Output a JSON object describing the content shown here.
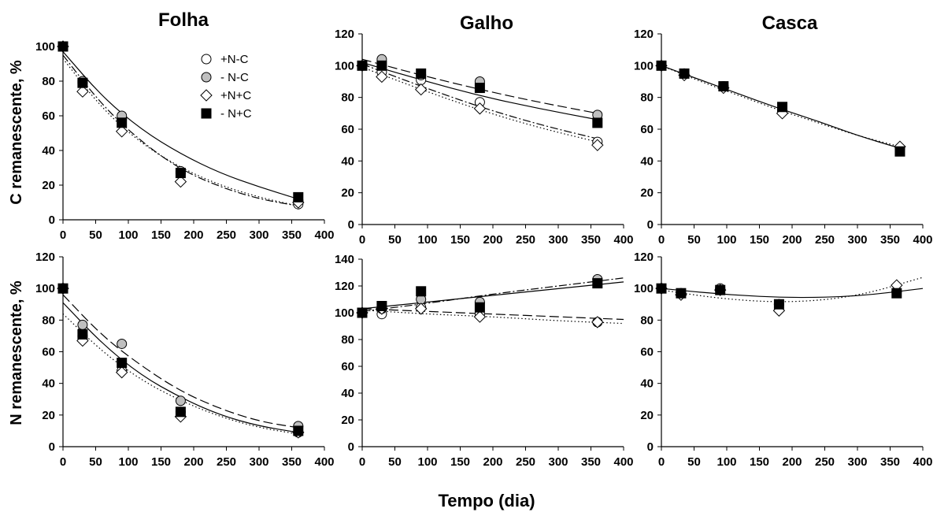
{
  "figure": {
    "x_axis_label": "Tempo (dia)",
    "y_axis_labels": [
      "C remanescente, %",
      "N remanescente, %"
    ],
    "column_titles": [
      "Folha",
      "Galho",
      "Casca"
    ],
    "legend": [
      {
        "label": "+N-C",
        "marker": "circle",
        "fill": "#ffffff"
      },
      {
        "label": "- N-C",
        "marker": "circle",
        "fill": "#bfbfbf"
      },
      {
        "label": "+N+C",
        "marker": "diamond",
        "fill": "#ffffff"
      },
      {
        "label": "- N+C",
        "marker": "square",
        "fill": "#000000"
      }
    ]
  },
  "chart_data": [
    {
      "type": "scatter",
      "title": "Folha",
      "ylabel": "C remanescente, %",
      "xlim": [
        0,
        400
      ],
      "ylim": [
        0,
        100
      ],
      "xticks": [
        0,
        50,
        100,
        150,
        200,
        250,
        300,
        350,
        400
      ],
      "yticks": [
        0,
        20,
        40,
        60,
        80,
        100
      ],
      "series": [
        {
          "name": "+N-C",
          "x": [
            0,
            30,
            90,
            180,
            360
          ],
          "y": [
            100,
            79,
            58,
            27,
            9
          ]
        },
        {
          "name": "- N-C",
          "x": [
            0,
            30,
            90,
            180,
            360
          ],
          "y": [
            100,
            80,
            60,
            28,
            11
          ]
        },
        {
          "name": "+N+C",
          "x": [
            0,
            30,
            90,
            180,
            360
          ],
          "y": [
            100,
            74,
            51,
            22,
            10
          ]
        },
        {
          "name": "- N+C",
          "x": [
            0,
            30,
            90,
            180,
            360
          ],
          "y": [
            100,
            79,
            56,
            27,
            13
          ]
        }
      ],
      "fits": [
        {
          "style": "solid",
          "x": [
            0,
            60,
            120,
            180,
            240,
            300,
            360
          ],
          "y": [
            97,
            71,
            52,
            38,
            27,
            19,
            12
          ]
        },
        {
          "style": "dotted",
          "x": [
            0,
            60,
            120,
            180,
            240,
            300,
            360
          ],
          "y": [
            93,
            64,
            44,
            30,
            20,
            13,
            8
          ]
        },
        {
          "style": "dashdot",
          "x": [
            0,
            60,
            120,
            180,
            240,
            300,
            360
          ],
          "y": [
            95,
            66,
            45,
            29,
            19,
            12,
            8
          ]
        }
      ]
    },
    {
      "type": "scatter",
      "title": "Galho",
      "ylabel": "",
      "xlim": [
        0,
        400
      ],
      "ylim": [
        0,
        120
      ],
      "xticks": [
        0,
        50,
        100,
        150,
        200,
        250,
        300,
        350,
        400
      ],
      "yticks": [
        0,
        20,
        40,
        60,
        80,
        100,
        120
      ],
      "series": [
        {
          "name": "+N-C",
          "x": [
            0,
            30,
            90,
            180,
            360
          ],
          "y": [
            100,
            96,
            91,
            77,
            52
          ]
        },
        {
          "name": "- N-C",
          "x": [
            0,
            30,
            90,
            180,
            360
          ],
          "y": [
            100,
            104,
            94,
            90,
            69
          ]
        },
        {
          "name": "+N+C",
          "x": [
            0,
            30,
            90,
            180,
            360
          ],
          "y": [
            100,
            93,
            85,
            73,
            50
          ]
        },
        {
          "name": "- N+C",
          "x": [
            0,
            30,
            90,
            180,
            360
          ],
          "y": [
            100,
            100,
            95,
            86,
            64
          ]
        }
      ],
      "fits": [
        {
          "style": "dashed",
          "x": [
            0,
            90,
            180,
            270,
            360
          ],
          "y": [
            104,
            94,
            85,
            77,
            70
          ]
        },
        {
          "style": "solid",
          "x": [
            0,
            90,
            180,
            270,
            360
          ],
          "y": [
            102,
            91,
            81,
            73,
            66
          ]
        },
        {
          "style": "dashdot",
          "x": [
            0,
            90,
            180,
            270,
            360
          ],
          "y": [
            101,
            87,
            74,
            63,
            54
          ]
        },
        {
          "style": "dotted",
          "x": [
            0,
            90,
            180,
            270,
            360
          ],
          "y": [
            99,
            85,
            72,
            61,
            52
          ]
        }
      ]
    },
    {
      "type": "scatter",
      "title": "Casca",
      "ylabel": "",
      "xlim": [
        0,
        400
      ],
      "ylim": [
        0,
        120
      ],
      "xticks": [
        0,
        50,
        100,
        150,
        200,
        250,
        300,
        350,
        400
      ],
      "yticks": [
        0,
        20,
        40,
        60,
        80,
        100,
        120
      ],
      "series": [
        {
          "name": "+N-C",
          "x": [
            0,
            35,
            95,
            185,
            365
          ],
          "y": [
            100,
            95,
            87,
            71,
            48
          ]
        },
        {
          "name": "- N-C",
          "x": [
            0,
            35,
            95,
            185,
            365
          ],
          "y": [
            100,
            95,
            87,
            72,
            48
          ]
        },
        {
          "name": "+N+C",
          "x": [
            0,
            35,
            95,
            185,
            365
          ],
          "y": [
            100,
            94,
            86,
            70,
            49
          ]
        },
        {
          "name": "- N+C",
          "x": [
            0,
            35,
            95,
            185,
            365
          ],
          "y": [
            100,
            95,
            87,
            74,
            46
          ]
        }
      ],
      "fits": [
        {
          "style": "solid",
          "x": [
            0,
            60,
            120,
            180,
            240,
            300,
            365
          ],
          "y": [
            100,
            91,
            82,
            73,
            65,
            56,
            48
          ]
        },
        {
          "style": "dotted",
          "x": [
            0,
            60,
            120,
            180,
            240,
            300,
            365
          ],
          "y": [
            100,
            90,
            81,
            72,
            64,
            56,
            49
          ]
        }
      ]
    },
    {
      "type": "scatter",
      "title": "",
      "ylabel": "N remanescente, %",
      "xlim": [
        0,
        400
      ],
      "ylim": [
        0,
        120
      ],
      "xticks": [
        0,
        50,
        100,
        150,
        200,
        250,
        300,
        350,
        400
      ],
      "yticks": [
        0,
        20,
        40,
        60,
        80,
        100,
        120
      ],
      "series": [
        {
          "name": "+N-C",
          "x": [
            0,
            30,
            90,
            180,
            360
          ],
          "y": [
            100,
            70,
            48,
            22,
            9
          ]
        },
        {
          "name": "- N-C",
          "x": [
            0,
            30,
            90,
            180,
            360
          ],
          "y": [
            100,
            77,
            65,
            29,
            13
          ]
        },
        {
          "name": "+N+C",
          "x": [
            0,
            30,
            90,
            180,
            360
          ],
          "y": [
            100,
            67,
            47,
            19,
            9
          ]
        },
        {
          "name": "- N+C",
          "x": [
            0,
            30,
            90,
            180,
            360
          ],
          "y": [
            100,
            71,
            53,
            22,
            10
          ]
        }
      ],
      "fits": [
        {
          "style": "dashed",
          "x": [
            0,
            60,
            120,
            180,
            240,
            300,
            360
          ],
          "y": [
            96,
            70,
            51,
            35,
            24,
            16,
            12
          ]
        },
        {
          "style": "solid",
          "x": [
            0,
            60,
            120,
            180,
            240,
            300,
            360
          ],
          "y": [
            91,
            65,
            45,
            31,
            20,
            13,
            9
          ]
        },
        {
          "style": "dotted",
          "x": [
            0,
            60,
            120,
            180,
            240,
            300,
            360
          ],
          "y": [
            84,
            60,
            42,
            29,
            19,
            12,
            8
          ]
        }
      ]
    },
    {
      "type": "scatter",
      "title": "",
      "ylabel": "",
      "xlim": [
        0,
        400
      ],
      "ylim": [
        0,
        140
      ],
      "xticks": [
        0,
        50,
        100,
        150,
        200,
        250,
        300,
        350,
        400
      ],
      "yticks": [
        0,
        20,
        40,
        60,
        80,
        100,
        120,
        140
      ],
      "series": [
        {
          "name": "+N-C",
          "x": [
            0,
            30,
            90,
            180,
            360
          ],
          "y": [
            100,
            99,
            104,
            99,
            93
          ]
        },
        {
          "name": "- N-C",
          "x": [
            0,
            30,
            90,
            180,
            360
          ],
          "y": [
            100,
            103,
            110,
            108,
            125
          ]
        },
        {
          "name": "+N+C",
          "x": [
            0,
            30,
            90,
            180,
            360
          ],
          "y": [
            100,
            103,
            103,
            97,
            93
          ]
        },
        {
          "name": "- N+C",
          "x": [
            0,
            30,
            90,
            180,
            360
          ],
          "y": [
            100,
            105,
            116,
            104,
            122
          ]
        }
      ],
      "fits": [
        {
          "style": "solid",
          "x": [
            0,
            100,
            200,
            300,
            400
          ],
          "y": [
            103,
            108,
            113,
            118,
            123
          ]
        },
        {
          "style": "dashdot",
          "x": [
            0,
            100,
            200,
            300,
            400
          ],
          "y": [
            101,
            107,
            114,
            120,
            126
          ]
        },
        {
          "style": "dashed",
          "x": [
            0,
            100,
            200,
            300,
            400
          ],
          "y": [
            103,
            101,
            99,
            97,
            95
          ]
        },
        {
          "style": "dotted",
          "x": [
            0,
            100,
            200,
            300,
            400
          ],
          "y": [
            102,
            99,
            97,
            94,
            92
          ]
        }
      ]
    },
    {
      "type": "scatter",
      "title": "",
      "ylabel": "",
      "xlim": [
        0,
        400
      ],
      "ylim": [
        0,
        120
      ],
      "xticks": [
        0,
        50,
        100,
        150,
        200,
        250,
        300,
        350,
        400
      ],
      "yticks": [
        0,
        20,
        40,
        60,
        80,
        100,
        120
      ],
      "series": [
        {
          "name": "+N-C",
          "x": [
            0,
            30,
            90,
            180,
            360
          ],
          "y": [
            100,
            97,
            100,
            90,
            98
          ]
        },
        {
          "name": "- N-C",
          "x": [
            0,
            30,
            90,
            180,
            360
          ],
          "y": [
            100,
            97,
            99,
            90,
            98
          ]
        },
        {
          "name": "+N+C",
          "x": [
            0,
            30,
            90,
            180,
            360
          ],
          "y": [
            100,
            96,
            99,
            86,
            102
          ]
        },
        {
          "name": "- N+C",
          "x": [
            0,
            30,
            90,
            180,
            360
          ],
          "y": [
            100,
            97,
            99,
            90,
            97
          ]
        }
      ],
      "fits": [
        {
          "style": "solid",
          "x": [
            0,
            100,
            200,
            300,
            400
          ],
          "y": [
            100,
            96,
            94,
            95,
            100
          ]
        },
        {
          "style": "dotted",
          "x": [
            0,
            100,
            200,
            300,
            400
          ],
          "y": [
            99,
            93,
            91,
            95,
            107
          ]
        }
      ]
    }
  ]
}
